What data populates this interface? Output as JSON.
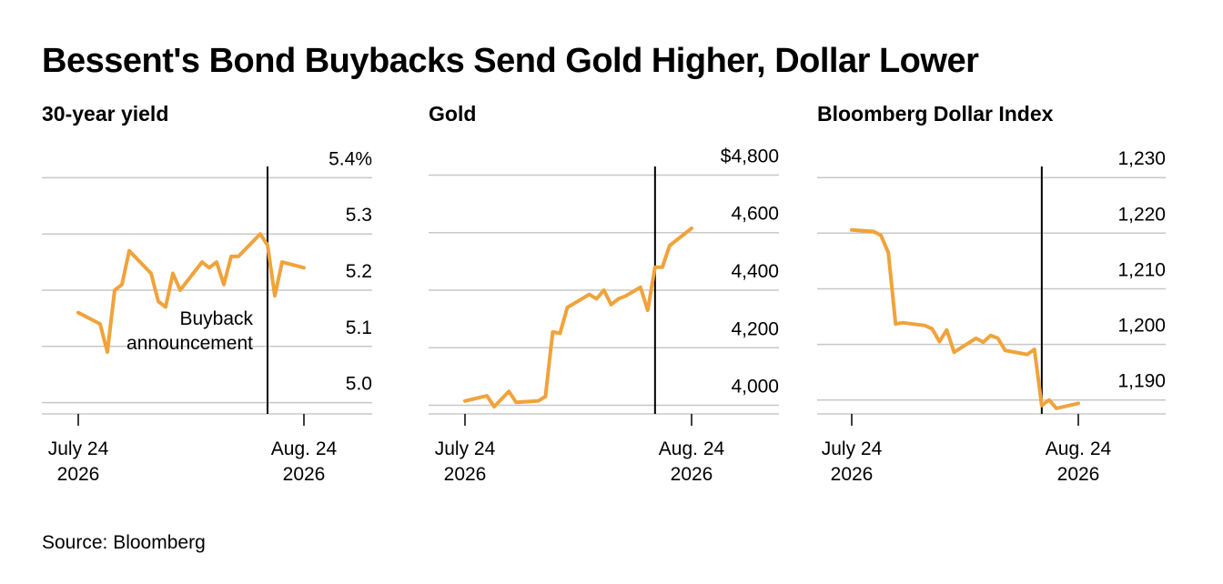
{
  "title": "Bessent's Bond Buybacks Send Gold Higher, Dollar Lower",
  "source": "Source: Bloomberg",
  "colors": {
    "line": "#F0A33C",
    "grid": "#C8C8C8",
    "axis": "#000000"
  },
  "chart_data": [
    {
      "type": "line",
      "title": "30-year yield",
      "ylim": [
        4.98,
        5.42
      ],
      "ticks": [
        5.0,
        5.1,
        5.2,
        5.3,
        5.4
      ],
      "tick_labels": [
        "5.0",
        "5.1",
        "5.2",
        "5.3",
        "5.4%"
      ],
      "grid": true,
      "x_ticks": [
        {
          "x": 0,
          "line1": "July 24",
          "line2": "2026"
        },
        {
          "x": 31,
          "line1": "Aug. 24",
          "line2": "2026"
        }
      ],
      "marker": {
        "x": 26,
        "label1": "Buyback",
        "label2": "announcement"
      },
      "series": [
        {
          "x": [
            0,
            3,
            4,
            5,
            6,
            7,
            10,
            11,
            12,
            13,
            14,
            17,
            18,
            19,
            20,
            21,
            22,
            25,
            26,
            27,
            28,
            31
          ],
          "values": [
            5.16,
            5.14,
            5.09,
            5.2,
            5.21,
            5.27,
            5.23,
            5.18,
            5.17,
            5.23,
            5.2,
            5.25,
            5.24,
            5.25,
            5.21,
            5.26,
            5.26,
            5.3,
            5.28,
            5.19,
            5.25,
            5.24
          ]
        }
      ]
    },
    {
      "type": "line",
      "title": "Gold",
      "ylim": [
        3970,
        4830
      ],
      "ticks": [
        4000,
        4200,
        4400,
        4600,
        4800
      ],
      "tick_labels": [
        "4,000",
        "4,200",
        "4,400",
        "4,600",
        "$4,800"
      ],
      "grid": true,
      "x_ticks": [
        {
          "x": 0,
          "line1": "July 24",
          "line2": "2026"
        },
        {
          "x": 31,
          "line1": "Aug. 24",
          "line2": "2026"
        }
      ],
      "marker": {
        "x": 26
      },
      "series": [
        {
          "x": [
            0,
            3,
            4,
            6,
            7,
            10,
            11,
            12,
            13,
            14,
            17,
            18,
            19,
            20,
            21,
            22,
            24,
            25,
            26,
            27,
            28,
            31
          ],
          "values": [
            4015,
            4033,
            3995,
            4048,
            4010,
            4015,
            4030,
            4255,
            4250,
            4340,
            4385,
            4370,
            4400,
            4350,
            4370,
            4380,
            4410,
            4330,
            4480,
            4480,
            4555,
            4615
          ]
        }
      ]
    },
    {
      "type": "line",
      "title": "Bloomberg Dollar Index",
      "ylim": [
        1187.5,
        1232
      ],
      "ticks": [
        1190,
        1200,
        1210,
        1220,
        1230
      ],
      "tick_labels": [
        "1,190",
        "1,200",
        "1,210",
        "1,220",
        "1,230"
      ],
      "grid": true,
      "x_ticks": [
        {
          "x": 0,
          "line1": "July 24",
          "line2": "2026"
        },
        {
          "x": 31,
          "line1": "Aug. 24",
          "line2": "2026"
        }
      ],
      "marker": {
        "x": 26
      },
      "series": [
        {
          "x": [
            0,
            3,
            4,
            5,
            6,
            7,
            10,
            11,
            12,
            13,
            14,
            17,
            18,
            19,
            20,
            21,
            24,
            25,
            26,
            27,
            28,
            31
          ],
          "values": [
            1220.6,
            1220.3,
            1219.6,
            1216.5,
            1203.7,
            1203.9,
            1203.4,
            1202.8,
            1200.5,
            1202.6,
            1198.6,
            1201.1,
            1200.4,
            1201.6,
            1201.1,
            1198.9,
            1198.2,
            1199.1,
            1189.0,
            1190.0,
            1188.5,
            1189.4
          ]
        }
      ]
    }
  ]
}
